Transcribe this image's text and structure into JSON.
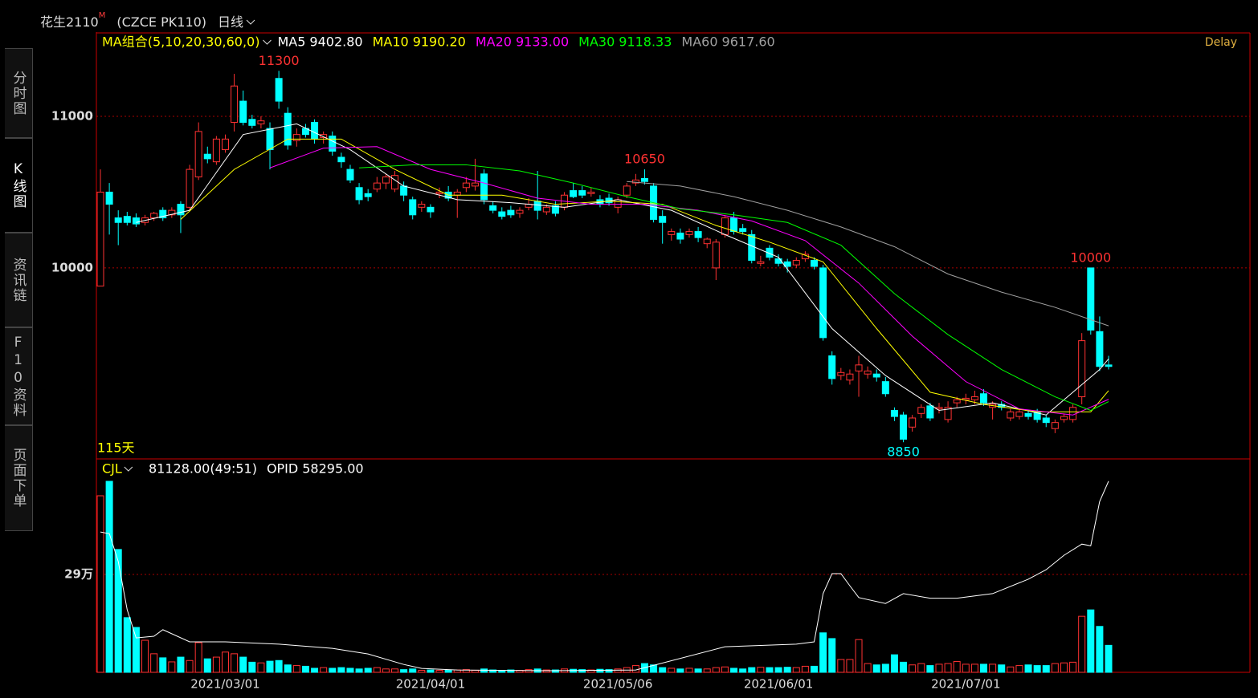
{
  "header": {
    "symbol": "花生2110",
    "symbol_mark": "M",
    "code": "(CZCE PK110)",
    "period": "日线"
  },
  "tabs": [
    "分时图",
    "K线图",
    "资讯链",
    "F10资料",
    "页面下单"
  ],
  "chart_data": {
    "type": "candlestick",
    "ma_title": "MA组合(5,10,20,30,60,0)",
    "delay": "Delay",
    "days": "115天",
    "ylim": [
      8740,
      11545
    ],
    "yticks": [
      10000,
      11000
    ],
    "up_color": "#ff3232",
    "down_color": "#00ffff",
    "categories": [
      null,
      null,
      null,
      null,
      null,
      null,
      null,
      null,
      null,
      null,
      null,
      null,
      null,
      null,
      "2021/03/01",
      null,
      null,
      null,
      null,
      null,
      null,
      null,
      null,
      null,
      null,
      null,
      null,
      null,
      null,
      null,
      null,
      null,
      null,
      null,
      null,
      null,
      null,
      "2021/04/01",
      null,
      null,
      null,
      null,
      null,
      null,
      null,
      null,
      null,
      null,
      null,
      null,
      null,
      null,
      null,
      null,
      null,
      null,
      null,
      null,
      "2021/05/06",
      null,
      null,
      null,
      null,
      null,
      null,
      null,
      null,
      null,
      null,
      null,
      null,
      null,
      null,
      null,
      null,
      null,
      "2021/06/01",
      null,
      null,
      null,
      null,
      null,
      null,
      null,
      null,
      null,
      null,
      null,
      null,
      null,
      null,
      null,
      null,
      null,
      null,
      null,
      null,
      "2021/07/01",
      null,
      null,
      null,
      null,
      null,
      null,
      null,
      null,
      null,
      null,
      null,
      null,
      null,
      null,
      null,
      null
    ],
    "candles": [
      [
        9880,
        10650,
        9880,
        10500
      ],
      [
        10500,
        10560,
        10220,
        10420
      ],
      [
        10330,
        10380,
        10150,
        10300
      ],
      [
        10340,
        10370,
        10280,
        10300
      ],
      [
        10330,
        10360,
        10270,
        10290
      ],
      [
        10300,
        10350,
        10280,
        10330
      ],
      [
        10330,
        10370,
        10310,
        10360
      ],
      [
        10380,
        10400,
        10310,
        10330
      ],
      [
        10350,
        10400,
        10330,
        10380
      ],
      [
        10420,
        10440,
        10230,
        10350
      ],
      [
        10400,
        10680,
        10380,
        10650
      ],
      [
        10600,
        10960,
        10580,
        10900
      ],
      [
        10750,
        10800,
        10690,
        10720
      ],
      [
        10700,
        10870,
        10680,
        10850
      ],
      [
        10780,
        10880,
        10760,
        10850
      ],
      [
        10960,
        11280,
        10900,
        11200
      ],
      [
        11100,
        11170,
        10940,
        10960
      ],
      [
        10980,
        11010,
        10920,
        10940
      ],
      [
        10950,
        11000,
        10920,
        10970
      ],
      [
        10920,
        10960,
        10650,
        10780
      ],
      [
        11250,
        11300,
        11050,
        11100
      ],
      [
        11020,
        11060,
        10780,
        10810
      ],
      [
        10840,
        10920,
        10800,
        10880
      ],
      [
        10920,
        10950,
        10860,
        10880
      ],
      [
        10960,
        10980,
        10820,
        10850
      ],
      [
        10860,
        10900,
        10820,
        10880
      ],
      [
        10870,
        10900,
        10740,
        10770
      ],
      [
        10730,
        10760,
        10660,
        10700
      ],
      [
        10650,
        10680,
        10560,
        10580
      ],
      [
        10530,
        10560,
        10420,
        10450
      ],
      [
        10490,
        10520,
        10440,
        10470
      ],
      [
        10520,
        10600,
        10500,
        10560
      ],
      [
        10560,
        10620,
        10520,
        10600
      ],
      [
        10520,
        10640,
        10500,
        10610
      ],
      [
        10540,
        10570,
        10440,
        10480
      ],
      [
        10450,
        10470,
        10320,
        10350
      ],
      [
        10400,
        10440,
        10370,
        10420
      ],
      [
        10400,
        10420,
        10330,
        10370
      ],
      [
        10490,
        10530,
        10460,
        10500
      ],
      [
        10500,
        10540,
        10440,
        10460
      ],
      [
        10480,
        10520,
        10330,
        10500
      ],
      [
        10530,
        10600,
        10500,
        10560
      ],
      [
        10540,
        10720,
        10510,
        10560
      ],
      [
        10620,
        10650,
        10420,
        10450
      ],
      [
        10410,
        10440,
        10360,
        10380
      ],
      [
        10370,
        10400,
        10320,
        10340
      ],
      [
        10380,
        10410,
        10330,
        10350
      ],
      [
        10360,
        10400,
        10330,
        10380
      ],
      [
        10400,
        10460,
        10380,
        10420
      ],
      [
        10440,
        10640,
        10320,
        10380
      ],
      [
        10370,
        10420,
        10350,
        10400
      ],
      [
        10410,
        10440,
        10340,
        10360
      ],
      [
        10400,
        10500,
        10380,
        10480
      ],
      [
        10510,
        10560,
        10460,
        10470
      ],
      [
        10510,
        10540,
        10460,
        10480
      ],
      [
        10490,
        10530,
        10470,
        10500
      ],
      [
        10450,
        10480,
        10400,
        10420
      ],
      [
        10460,
        10490,
        10410,
        10430
      ],
      [
        10400,
        10470,
        10360,
        10450
      ],
      [
        10480,
        10560,
        10460,
        10540
      ],
      [
        10560,
        10620,
        10540,
        10580
      ],
      [
        10590,
        10650,
        10550,
        10570
      ],
      [
        10540,
        10560,
        10300,
        10320
      ],
      [
        10340,
        10380,
        10160,
        10300
      ],
      [
        10220,
        10260,
        10180,
        10240
      ],
      [
        10230,
        10260,
        10160,
        10190
      ],
      [
        10220,
        10260,
        10200,
        10240
      ],
      [
        10240,
        10270,
        10170,
        10200
      ],
      [
        10160,
        10200,
        10130,
        10190
      ],
      [
        10000,
        10190,
        9920,
        10170
      ],
      [
        10220,
        10350,
        10200,
        10330
      ],
      [
        10330,
        10370,
        10220,
        10240
      ],
      [
        10260,
        10290,
        10220,
        10240
      ],
      [
        10220,
        10250,
        10030,
        10050
      ],
      [
        10030,
        10080,
        10010,
        10040
      ],
      [
        10130,
        10150,
        10050,
        10070
      ],
      [
        10060,
        10090,
        10010,
        10030
      ],
      [
        10040,
        10060,
        9970,
        10010
      ],
      [
        10020,
        10070,
        10000,
        10050
      ],
      [
        10060,
        10110,
        10040,
        10090
      ],
      [
        10050,
        10070,
        9990,
        10010
      ],
      [
        10000,
        10020,
        9520,
        9540
      ],
      [
        9420,
        9450,
        9230,
        9270
      ],
      [
        9290,
        9340,
        9260,
        9310
      ],
      [
        9260,
        9330,
        9230,
        9300
      ],
      [
        9320,
        9420,
        9150,
        9360
      ],
      [
        9300,
        9350,
        9270,
        9320
      ],
      [
        9300,
        9330,
        9250,
        9280
      ],
      [
        9250,
        9280,
        9150,
        9170
      ],
      [
        9060,
        9080,
        8990,
        9020
      ],
      [
        9030,
        9050,
        8850,
        8870
      ],
      [
        8950,
        9030,
        8920,
        9010
      ],
      [
        9040,
        9100,
        9010,
        9080
      ],
      [
        9090,
        9110,
        8990,
        9010
      ],
      [
        9070,
        9110,
        9040,
        9080
      ],
      [
        9000,
        9120,
        8980,
        9080
      ],
      [
        9110,
        9150,
        9080,
        9130
      ],
      [
        9130,
        9170,
        9100,
        9140
      ],
      [
        9130,
        9190,
        9100,
        9150
      ],
      [
        9170,
        9200,
        9090,
        9110
      ],
      [
        9080,
        9120,
        9000,
        9100
      ],
      [
        9100,
        9120,
        9060,
        9080
      ],
      [
        9010,
        9070,
        8990,
        9050
      ],
      [
        9020,
        9070,
        9000,
        9050
      ],
      [
        9040,
        9060,
        9000,
        9020
      ],
      [
        9050,
        9070,
        8980,
        9000
      ],
      [
        9010,
        9030,
        8950,
        8980
      ],
      [
        8940,
        9000,
        8910,
        8980
      ],
      [
        9000,
        9040,
        8980,
        9020
      ],
      [
        9000,
        9100,
        8980,
        9080
      ],
      [
        9150,
        9570,
        9100,
        9520
      ],
      [
        10000,
        10000,
        9560,
        9590
      ],
      [
        9580,
        9680,
        9320,
        9350
      ],
      [
        9360,
        9420,
        9330,
        9350
      ]
    ],
    "annotations": [
      {
        "index": 20,
        "value": 11300,
        "at": "high",
        "color": "#ff3232"
      },
      {
        "index": 61,
        "value": 10650,
        "at": "high",
        "color": "#ff3232"
      },
      {
        "index": 90,
        "value": 8850,
        "at": "low",
        "color": "#00ffff"
      },
      {
        "index": 111,
        "value": 10000,
        "at": "high",
        "color": "#ff3232"
      }
    ],
    "series": [
      {
        "name": "MA5",
        "color": "#ffffff",
        "legend_value": {
          "value": 9402.8,
          "label": "9402.80"
        },
        "x": [
          4,
          10,
          16,
          22,
          28,
          34,
          40,
          46,
          52,
          58,
          64,
          70,
          76,
          82,
          88,
          94,
          100,
          106,
          112,
          113
        ],
        "values": [
          10300,
          10380,
          10880,
          10950,
          10780,
          10540,
          10450,
          10430,
          10400,
          10450,
          10380,
          10220,
          10070,
          9600,
          9290,
          9060,
          9110,
          9030,
          9330,
          9400
        ]
      },
      {
        "name": "MA10",
        "color": "#ffff00",
        "legend_value": {
          "value": 9190.2,
          "label": "9190.20"
        },
        "x": [
          9,
          15,
          21,
          27,
          33,
          39,
          45,
          51,
          57,
          63,
          69,
          75,
          81,
          87,
          93,
          99,
          105,
          111,
          113
        ],
        "values": [
          10320,
          10650,
          10850,
          10850,
          10650,
          10480,
          10480,
          10420,
          10440,
          10420,
          10280,
          10170,
          10040,
          9600,
          9180,
          9100,
          9050,
          9050,
          9190
        ]
      },
      {
        "name": "MA20",
        "color": "#ff00ff",
        "legend_value": {
          "value": 9133,
          "label": "9133.00"
        },
        "x": [
          19,
          25,
          31,
          37,
          43,
          49,
          55,
          61,
          67,
          73,
          79,
          85,
          91,
          97,
          103,
          109,
          113
        ],
        "values": [
          10660,
          10790,
          10800,
          10650,
          10560,
          10460,
          10420,
          10420,
          10380,
          10310,
          10180,
          9900,
          9550,
          9250,
          9070,
          9030,
          9133
        ]
      },
      {
        "name": "MA30",
        "color": "#00ff00",
        "legend_value": {
          "value": 9118.33,
          "label": "9118.33"
        },
        "x": [
          29,
          35,
          41,
          47,
          53,
          59,
          65,
          71,
          77,
          83,
          89,
          95,
          101,
          107,
          111,
          113
        ],
        "values": [
          10660,
          10680,
          10680,
          10640,
          10560,
          10470,
          10390,
          10350,
          10300,
          10150,
          9830,
          9560,
          9330,
          9150,
          9060,
          9118
        ]
      },
      {
        "name": "MA60",
        "color": "#a0a0a0",
        "legend_value": {
          "value": 9617.6,
          "label": "9617.60"
        },
        "x": [
          59,
          65,
          71,
          77,
          83,
          89,
          95,
          101,
          107,
          113
        ],
        "values": [
          10570,
          10540,
          10470,
          10380,
          10270,
          10140,
          9960,
          9840,
          9740,
          9618
        ]
      }
    ],
    "volume": {
      "title": "CJL",
      "info": "81128.00(49:51)",
      "ylim": [
        0,
        627500
      ],
      "yticks": [
        {
          "value": 290000,
          "label": "29万"
        }
      ],
      "values": [
        523000,
        566000,
        364000,
        162000,
        133000,
        95000,
        55000,
        43000,
        31000,
        45000,
        35000,
        88000,
        40000,
        45000,
        60000,
        55000,
        45000,
        30000,
        28000,
        33000,
        35000,
        22000,
        20000,
        18000,
        12000,
        14000,
        12000,
        14000,
        12000,
        10000,
        12000,
        14000,
        10000,
        10000,
        8000,
        10000,
        6000,
        7000,
        6000,
        6000,
        7000,
        8000,
        6000,
        10000,
        7000,
        6000,
        7000,
        6000,
        8000,
        10000,
        7000,
        7000,
        10000,
        9000,
        8000,
        7000,
        9000,
        8000,
        10000,
        14000,
        20000,
        26000,
        22000,
        14000,
        12000,
        10000,
        12000,
        10000,
        10000,
        14000,
        16000,
        12000,
        10000,
        14000,
        15000,
        14000,
        14000,
        15000,
        14000,
        18000,
        18000,
        117000,
        100000,
        38000,
        38000,
        97000,
        26000,
        22000,
        24000,
        52000,
        30000,
        22000,
        26000,
        20000,
        24000,
        26000,
        32000,
        24000,
        24000,
        24000,
        24000,
        22000,
        16000,
        20000,
        22000,
        20000,
        20000,
        26000,
        28000,
        30000,
        166000,
        185000,
        136000,
        80000
      ],
      "opid": {
        "name": "OPID",
        "legend_value": {
          "value": 58295,
          "label": "58295.00"
        },
        "color": "#ffffff",
        "y2lim": [
          0,
          64600
        ],
        "x": [
          0,
          1,
          2,
          3,
          4,
          6,
          7,
          10,
          14,
          20,
          26,
          30,
          34,
          36,
          40,
          50,
          60,
          70,
          78,
          80,
          81,
          82,
          83,
          84,
          85,
          88,
          90,
          93,
          96,
          100,
          104,
          106,
          108,
          110,
          111,
          112,
          113
        ],
        "values": [
          42800,
          42300,
          33800,
          19100,
          10500,
          11000,
          13000,
          9300,
          9300,
          8600,
          7300,
          5600,
          2400,
          1200,
          700,
          500,
          700,
          7800,
          8600,
          9300,
          24000,
          30100,
          30100,
          26400,
          22800,
          21000,
          24000,
          22600,
          22600,
          24000,
          28400,
          31300,
          35700,
          39100,
          38600,
          52100,
          58300
        ]
      }
    }
  }
}
